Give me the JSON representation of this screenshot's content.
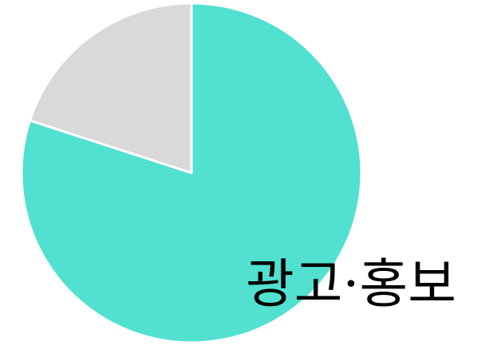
{
  "chart_data": {
    "type": "pie",
    "slices": [
      {
        "label": "",
        "value": 80,
        "color": "#52E0D0"
      },
      {
        "label": "",
        "value": 20,
        "color": "#D9D9D9"
      }
    ],
    "annotation": "광고·홍보"
  }
}
